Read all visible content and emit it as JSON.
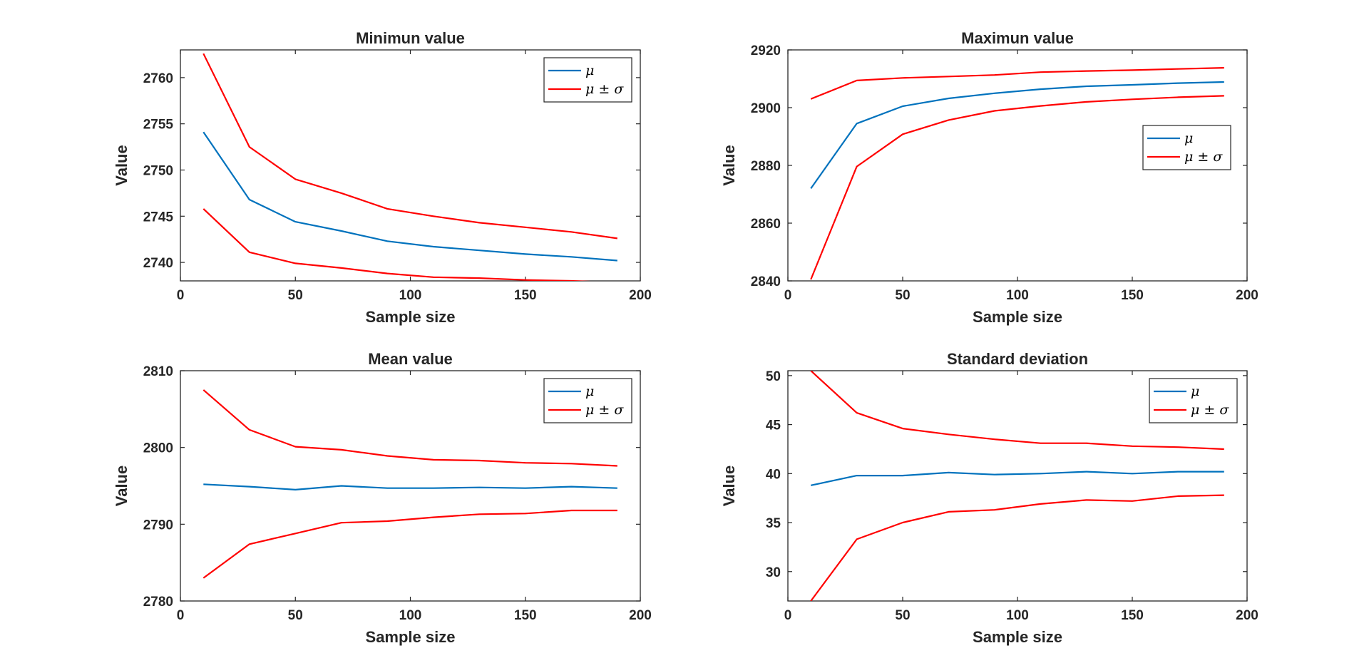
{
  "chart_data": [
    {
      "type": "line",
      "title": "Minimun value",
      "xlabel": "Sample size",
      "ylabel": "Value",
      "xlim": [
        0,
        200
      ],
      "ylim": [
        2738,
        2763
      ],
      "xticks": [
        "0",
        "50",
        "100",
        "150",
        "200"
      ],
      "yticks": [
        "2740",
        "2745",
        "2750",
        "2755",
        "2760"
      ],
      "grid": false,
      "legend_position": "top-right",
      "x": [
        10,
        30,
        50,
        70,
        90,
        110,
        130,
        150,
        170,
        190
      ],
      "series": [
        {
          "name": "μ",
          "color": "#0072BD",
          "values": [
            2754.1,
            2746.8,
            2744.4,
            2743.4,
            2742.3,
            2741.7,
            2741.3,
            2740.9,
            2740.6,
            2740.2
          ]
        },
        {
          "name": "μ ± σ",
          "color": "#FF0000",
          "values": [
            2762.6,
            2752.5,
            2749.0,
            2747.5,
            2745.8,
            2745.0,
            2744.3,
            2743.8,
            2743.3,
            2742.6
          ]
        },
        {
          "color": "#FF0000",
          "values": [
            2745.8,
            2741.1,
            2739.9,
            2739.4,
            2738.8,
            2738.4,
            2738.3,
            2738.1,
            2738.0,
            2737.8
          ]
        }
      ]
    },
    {
      "type": "line",
      "title": "Maximun value",
      "xlabel": "Sample size",
      "ylabel": "Value",
      "xlim": [
        0,
        200
      ],
      "ylim": [
        2840,
        2920
      ],
      "xticks": [
        "0",
        "50",
        "100",
        "150",
        "200"
      ],
      "yticks": [
        "2840",
        "2860",
        "2880",
        "2900",
        "2920"
      ],
      "grid": false,
      "legend_position": "right",
      "x": [
        10,
        30,
        50,
        70,
        90,
        110,
        130,
        150,
        170,
        190
      ],
      "series": [
        {
          "name": "μ",
          "color": "#0072BD",
          "values": [
            2872.0,
            2894.5,
            2900.5,
            2903.2,
            2905.0,
            2906.4,
            2907.4,
            2907.9,
            2908.5,
            2908.9
          ]
        },
        {
          "name": "μ ± σ",
          "color": "#FF0000",
          "values": [
            2903.0,
            2909.4,
            2910.3,
            2910.8,
            2911.3,
            2912.3,
            2912.7,
            2913.0,
            2913.4,
            2913.8
          ]
        },
        {
          "color": "#FF0000",
          "values": [
            2840.5,
            2879.6,
            2890.8,
            2895.7,
            2898.9,
            2900.6,
            2902.0,
            2902.9,
            2903.6,
            2904.1
          ]
        }
      ]
    },
    {
      "type": "line",
      "title": "Mean value",
      "xlabel": "Sample size",
      "ylabel": "Value",
      "xlim": [
        0,
        200
      ],
      "ylim": [
        2780,
        2810
      ],
      "xticks": [
        "0",
        "50",
        "100",
        "150",
        "200"
      ],
      "yticks": [
        "2780",
        "2790",
        "2800",
        "2810"
      ],
      "grid": false,
      "legend_position": "top-right",
      "x": [
        10,
        30,
        50,
        70,
        90,
        110,
        130,
        150,
        170,
        190
      ],
      "series": [
        {
          "name": "μ",
          "color": "#0072BD",
          "values": [
            2795.2,
            2794.9,
            2794.5,
            2795.0,
            2794.7,
            2794.7,
            2794.8,
            2794.7,
            2794.9,
            2794.7
          ]
        },
        {
          "name": "μ ± σ",
          "color": "#FF0000",
          "values": [
            2807.5,
            2802.3,
            2800.1,
            2799.7,
            2798.9,
            2798.4,
            2798.3,
            2798.0,
            2797.9,
            2797.6
          ]
        },
        {
          "color": "#FF0000",
          "values": [
            2783.0,
            2787.4,
            2788.8,
            2790.2,
            2790.4,
            2790.9,
            2791.3,
            2791.4,
            2791.8,
            2791.8
          ]
        }
      ]
    },
    {
      "type": "line",
      "title": "Standard deviation",
      "xlabel": "Sample size",
      "ylabel": "Value",
      "xlim": [
        0,
        200
      ],
      "ylim": [
        27,
        50.5
      ],
      "xticks": [
        "0",
        "50",
        "100",
        "150",
        "200"
      ],
      "yticks": [
        "30",
        "35",
        "40",
        "45",
        "50"
      ],
      "grid": false,
      "legend_position": "top-right",
      "x": [
        10,
        30,
        50,
        70,
        90,
        110,
        130,
        150,
        170,
        190
      ],
      "series": [
        {
          "name": "μ",
          "color": "#0072BD",
          "values": [
            38.8,
            39.8,
            39.8,
            40.1,
            39.9,
            40.0,
            40.2,
            40.0,
            40.2,
            40.2
          ]
        },
        {
          "name": "μ ± σ",
          "color": "#FF0000",
          "values": [
            50.5,
            46.2,
            44.6,
            44.0,
            43.5,
            43.1,
            43.1,
            42.8,
            42.7,
            42.5
          ]
        },
        {
          "color": "#FF0000",
          "values": [
            27.0,
            33.3,
            35.0,
            36.1,
            36.3,
            36.9,
            37.3,
            37.2,
            37.7,
            37.8
          ]
        }
      ]
    }
  ]
}
